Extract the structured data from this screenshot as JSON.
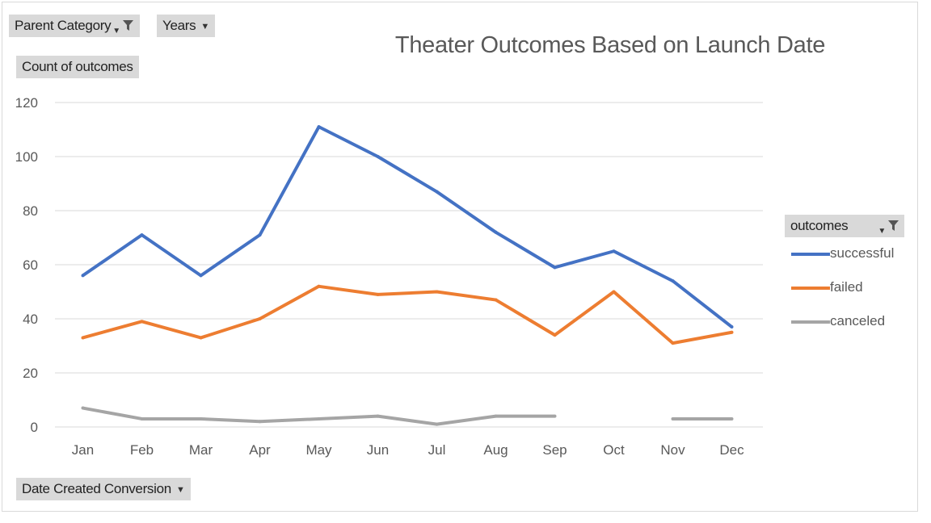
{
  "filters": {
    "parent_category": "Parent Category",
    "years": "Years",
    "values_field": "Count of outcomes",
    "axis_field": "Date Created Conversion",
    "legend_field": "outcomes"
  },
  "colors": {
    "successful": "#4472c4",
    "failed": "#ed7d31",
    "canceled": "#a5a5a5",
    "gridline": "#d9d9d9",
    "field_button": "#d9d9d9"
  },
  "icons": [
    "funnel-filter-icon",
    "dropdown-arrow-icon",
    "sort-arrow-icon"
  ],
  "chart_data": {
    "type": "line",
    "title": "Theater Outcomes Based on Launch Date",
    "xlabel": "",
    "ylabel": "",
    "categories": [
      "Jan",
      "Feb",
      "Mar",
      "Apr",
      "May",
      "Jun",
      "Jul",
      "Aug",
      "Sep",
      "Oct",
      "Nov",
      "Dec"
    ],
    "yticks": [
      "0",
      "20",
      "40",
      "60",
      "80",
      "100",
      "120"
    ],
    "ylim": [
      0,
      120
    ],
    "grid": true,
    "legend_position": "right",
    "series": [
      {
        "name": "successful",
        "color": "#4472c4",
        "values": [
          56,
          71,
          56,
          71,
          111,
          100,
          87,
          72,
          59,
          65,
          54,
          37
        ]
      },
      {
        "name": "failed",
        "color": "#ed7d31",
        "values": [
          33,
          39,
          33,
          40,
          52,
          49,
          50,
          47,
          34,
          50,
          31,
          35
        ]
      },
      {
        "name": "canceled",
        "color": "#a5a5a5",
        "values": [
          7,
          3,
          3,
          2,
          3,
          4,
          1,
          4,
          4,
          null,
          3,
          3
        ]
      }
    ]
  }
}
